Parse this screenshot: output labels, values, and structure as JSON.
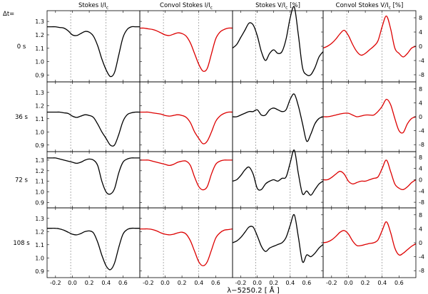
{
  "chart_data": {
    "type": "line",
    "xlabel": "λ−5250.2  [ Å ]",
    "delta_label": "Δt=",
    "columns": [
      {
        "title_main": "Stokes I/I",
        "title_sub": "c",
        "title_tail": "",
        "color": "#000000"
      },
      {
        "title_main": "Convol Stokes I/I",
        "title_sub": "c",
        "title_tail": "",
        "color": "#dd0000"
      },
      {
        "title_main": "Stokes V/I",
        "title_sub": "c",
        "title_tail": " [%]",
        "color": "#000000"
      },
      {
        "title_main": "Convol Stokes V/I",
        "title_sub": "c",
        "title_tail": " [%]",
        "color": "#dd0000"
      }
    ],
    "rows": [
      {
        "label": "0 s"
      },
      {
        "label": "36 s"
      },
      {
        "label": "72 s"
      },
      {
        "label": "108 s"
      }
    ],
    "xlim": [
      -0.3,
      0.8
    ],
    "x_ticks": [
      -0.2,
      0.0,
      0.2,
      0.4,
      0.6
    ],
    "x_tick_labels": [
      "-0.2",
      "0.0",
      "0.2",
      "0.4",
      "0.6"
    ],
    "guide_lines_x": [
      -0.02,
      0.4
    ],
    "intensity_ylim": [
      0.85,
      1.38
    ],
    "intensity_ticks": [
      0.9,
      1.0,
      1.1,
      1.2,
      1.3
    ],
    "intensity_tick_labels": [
      "0.9",
      "1.0",
      "1.1",
      "1.2",
      "1.3"
    ],
    "v_ylim": [
      -10,
      10
    ],
    "v_ticks": [
      -8,
      -4,
      0,
      4,
      8
    ],
    "v_tick_labels": [
      "-8",
      "-4",
      "0",
      "4",
      "8"
    ],
    "x": [
      -0.3,
      -0.25,
      -0.2,
      -0.15,
      -0.1,
      -0.05,
      0.0,
      0.05,
      0.1,
      0.15,
      0.2,
      0.25,
      0.3,
      0.35,
      0.4,
      0.45,
      0.5,
      0.55,
      0.6,
      0.65,
      0.7,
      0.75,
      0.8
    ],
    "series": [
      {
        "row": 0,
        "col": 0,
        "values": [
          1.26,
          1.26,
          1.26,
          1.255,
          1.25,
          1.23,
          1.2,
          1.195,
          1.21,
          1.225,
          1.22,
          1.19,
          1.12,
          1.02,
          0.94,
          0.89,
          0.92,
          1.05,
          1.18,
          1.24,
          1.26,
          1.26,
          1.26
        ]
      },
      {
        "row": 0,
        "col": 1,
        "values": [
          1.25,
          1.25,
          1.245,
          1.24,
          1.23,
          1.215,
          1.2,
          1.195,
          1.205,
          1.215,
          1.21,
          1.19,
          1.14,
          1.06,
          0.98,
          0.93,
          0.95,
          1.06,
          1.17,
          1.22,
          1.24,
          1.25,
          1.25
        ]
      },
      {
        "row": 0,
        "col": 2,
        "values": [
          -0.5,
          0.5,
          2.5,
          4.5,
          6.5,
          6.0,
          3.0,
          -1.5,
          -4.0,
          -2.0,
          -1.0,
          -2.0,
          -1.5,
          2.0,
          8.0,
          11.0,
          3.0,
          -6.0,
          -8.0,
          -8.0,
          -6.0,
          -3.0,
          -1.5
        ]
      },
      {
        "row": 0,
        "col": 3,
        "values": [
          -0.5,
          0.0,
          0.8,
          2.0,
          3.5,
          4.5,
          3.0,
          0.5,
          -1.5,
          -2.5,
          -2.0,
          -1.0,
          0.0,
          1.5,
          5.5,
          8.5,
          5.0,
          -0.5,
          -2.0,
          -3.0,
          -2.0,
          -0.5,
          0.0
        ]
      },
      {
        "row": 1,
        "col": 0,
        "values": [
          1.15,
          1.15,
          1.15,
          1.15,
          1.145,
          1.14,
          1.12,
          1.11,
          1.12,
          1.13,
          1.125,
          1.11,
          1.06,
          1.0,
          0.95,
          0.9,
          0.9,
          0.98,
          1.08,
          1.13,
          1.145,
          1.15,
          1.15
        ]
      },
      {
        "row": 1,
        "col": 1,
        "values": [
          1.15,
          1.15,
          1.15,
          1.145,
          1.14,
          1.135,
          1.125,
          1.12,
          1.125,
          1.13,
          1.125,
          1.11,
          1.07,
          1.0,
          0.95,
          0.91,
          0.93,
          1.0,
          1.08,
          1.12,
          1.14,
          1.15,
          1.15
        ]
      },
      {
        "row": 1,
        "col": 2,
        "values": [
          0.0,
          0.0,
          0.5,
          1.0,
          1.5,
          1.5,
          2.0,
          0.5,
          0.5,
          2.0,
          2.5,
          2.0,
          1.5,
          2.0,
          5.0,
          6.5,
          3.0,
          -2.0,
          -7.0,
          -5.0,
          -2.0,
          -0.5,
          0.0
        ]
      },
      {
        "row": 1,
        "col": 3,
        "values": [
          0.0,
          0.0,
          0.2,
          0.5,
          0.8,
          1.0,
          1.0,
          0.5,
          0.0,
          0.2,
          0.5,
          0.5,
          0.5,
          1.5,
          3.0,
          5.0,
          3.5,
          -0.5,
          -4.0,
          -4.5,
          -2.0,
          -0.5,
          0.0
        ]
      },
      {
        "row": 2,
        "col": 0,
        "values": [
          1.32,
          1.32,
          1.32,
          1.31,
          1.3,
          1.29,
          1.28,
          1.27,
          1.28,
          1.3,
          1.31,
          1.3,
          1.25,
          1.1,
          1.0,
          0.98,
          1.03,
          1.18,
          1.28,
          1.31,
          1.32,
          1.32,
          1.32
        ]
      },
      {
        "row": 2,
        "col": 1,
        "values": [
          1.3,
          1.3,
          1.3,
          1.29,
          1.28,
          1.27,
          1.26,
          1.25,
          1.26,
          1.28,
          1.29,
          1.29,
          1.25,
          1.14,
          1.05,
          1.02,
          1.05,
          1.17,
          1.26,
          1.29,
          1.3,
          1.3,
          1.3
        ]
      },
      {
        "row": 2,
        "col": 2,
        "values": [
          -0.5,
          0.0,
          1.5,
          3.5,
          4.5,
          2.0,
          -3.0,
          -3.5,
          -1.5,
          -0.5,
          0.0,
          -0.5,
          0.5,
          1.0,
          6.0,
          10.5,
          2.0,
          -5.0,
          -4.0,
          -5.5,
          -3.5,
          -1.5,
          -0.5
        ]
      },
      {
        "row": 2,
        "col": 3,
        "values": [
          0.0,
          0.0,
          0.8,
          2.0,
          3.0,
          2.0,
          -0.5,
          -1.5,
          -1.0,
          -0.5,
          -0.5,
          0.0,
          0.5,
          1.0,
          4.0,
          7.0,
          3.0,
          -1.5,
          -3.0,
          -3.5,
          -2.5,
          -1.0,
          0.0
        ]
      },
      {
        "row": 3,
        "col": 0,
        "values": [
          1.225,
          1.225,
          1.225,
          1.22,
          1.21,
          1.195,
          1.18,
          1.175,
          1.185,
          1.2,
          1.205,
          1.19,
          1.12,
          1.02,
          0.94,
          0.91,
          0.96,
          1.08,
          1.18,
          1.215,
          1.225,
          1.225,
          1.225
        ]
      },
      {
        "row": 3,
        "col": 1,
        "values": [
          1.22,
          1.22,
          1.22,
          1.215,
          1.205,
          1.19,
          1.18,
          1.175,
          1.18,
          1.19,
          1.195,
          1.18,
          1.13,
          1.05,
          0.97,
          0.94,
          0.97,
          1.06,
          1.15,
          1.19,
          1.21,
          1.215,
          1.22
        ]
      },
      {
        "row": 3,
        "col": 2,
        "values": [
          0.0,
          0.5,
          1.5,
          3.0,
          4.5,
          4.5,
          2.0,
          -1.0,
          -2.5,
          -1.5,
          -1.0,
          -0.5,
          0.0,
          1.5,
          5.0,
          8.0,
          1.5,
          -5.5,
          -3.5,
          -4.0,
          -3.0,
          -1.5,
          -0.5
        ]
      },
      {
        "row": 3,
        "col": 3,
        "values": [
          0.0,
          0.2,
          0.8,
          1.8,
          3.0,
          3.5,
          2.5,
          0.5,
          -0.8,
          -0.8,
          -0.5,
          -0.2,
          0.0,
          0.8,
          3.5,
          6.0,
          3.0,
          -1.5,
          -3.5,
          -3.0,
          -2.0,
          -1.0,
          -0.3
        ]
      }
    ]
  }
}
